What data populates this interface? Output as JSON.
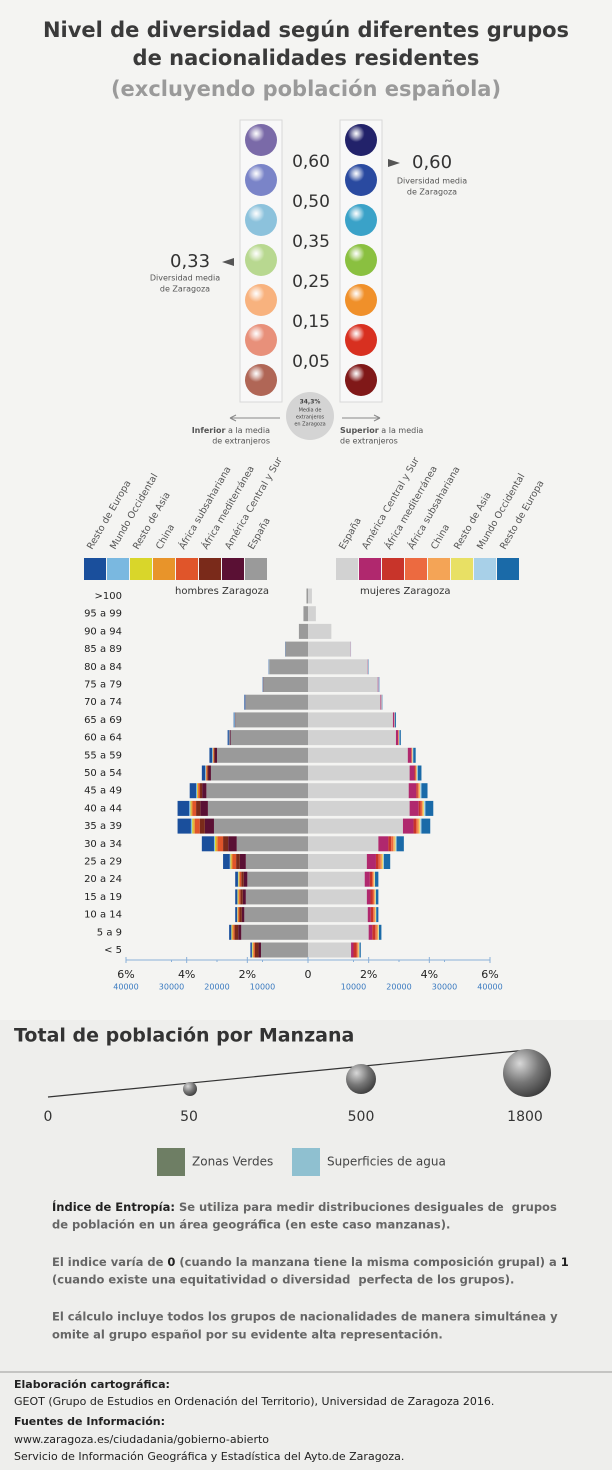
{
  "header": {
    "title_lines": [
      "Nivel de diversidad según diferentes grupos",
      "de nacionalidades residentes"
    ],
    "subtitle": "(excluyendo población española)"
  },
  "diversity": {
    "thresholds": [
      "0,60",
      "0,50",
      "0,35",
      "0,25",
      "0,15",
      "0,05"
    ],
    "left_colors": [
      "#7a6aa8",
      "#7a84c8",
      "#8cc2dc",
      "#b8d890",
      "#f8b27e",
      "#e8907a",
      "#b06656"
    ],
    "right_colors": [
      "#22226a",
      "#2a4aa0",
      "#3aa2c8",
      "#8ac040",
      "#f0902a",
      "#d83020",
      "#801818"
    ],
    "left_note": {
      "value": "0,33",
      "text": [
        "Diversidad media",
        "de Zaragoza"
      ]
    },
    "right_note": {
      "value": "0,60",
      "text": [
        "Diversidad media",
        "de Zaragoza"
      ]
    },
    "average": [
      "34,3%",
      "Media de",
      "extranjeros",
      "en Zaragoza"
    ],
    "inferior": {
      "bold": "Inferior",
      "text": " a la media",
      "line2": "de extranjeros"
    },
    "superior": {
      "bold": "Superior",
      "text": " a la media",
      "line2": "de extranjeros"
    }
  },
  "chart_data": {
    "type": "pyramid",
    "categories": [
      ">100",
      "95 a 99",
      "90 a 94",
      "85 a 89",
      "80 a 84",
      "75 a 79",
      "70 a 74",
      "65 a 69",
      "60 a 64",
      "55 a 59",
      "50 a 54",
      "45 a 49",
      "40 a 44",
      "35 a 39",
      "30 a 34",
      "25 a 29",
      "20 a 24",
      "15 a 19",
      "10 a 14",
      "5 a 9",
      "< 5"
    ],
    "xlim": [
      -6,
      6
    ],
    "xticks": [
      {
        "value": -6,
        "label": "6%"
      },
      {
        "value": -4,
        "label": "4%"
      },
      {
        "value": -2,
        "label": "2%"
      },
      0,
      {
        "value": 2,
        "label": "2%"
      },
      {
        "value": 4,
        "label": "4%"
      },
      {
        "value": 6,
        "label": "6%"
      }
    ],
    "x2ticks": [
      {
        "value": -6,
        "label": "40000"
      },
      {
        "value": -4.5,
        "label": "30000"
      },
      {
        "value": -3,
        "label": "20000"
      },
      {
        "value": -1.5,
        "label": "10000"
      },
      {
        "value": 1.5,
        "label": "10000"
      },
      {
        "value": 3,
        "label": "20000"
      },
      {
        "value": 4.5,
        "label": "30000"
      },
      {
        "value": 6,
        "label": "40000"
      }
    ],
    "groups": [
      {
        "name": "hombres Zaragoza",
        "series": [
          {
            "name": "España",
            "color": "#9a9a9a",
            "values": [
              -0.05,
              -0.15,
              -0.3,
              -0.74,
              -1.28,
              -1.47,
              -2.05,
              -2.4,
              -2.55,
              -3.0,
              -3.2,
              -3.35,
              -3.3,
              -3.1,
              -2.35,
              -2.05,
              -2.0,
              -2.05,
              -2.1,
              -2.2,
              -1.55
            ]
          },
          {
            "name": "América Central y Sur",
            "color": "#5a1034",
            "values": [
              0,
              0,
              0,
              0,
              0,
              -0.01,
              -0.01,
              -0.01,
              -0.03,
              -0.07,
              -0.08,
              -0.14,
              -0.25,
              -0.3,
              -0.28,
              -0.2,
              -0.12,
              -0.1,
              -0.08,
              -0.1,
              -0.08
            ]
          },
          {
            "name": "África mediterránea",
            "color": "#7a2a1a",
            "values": [
              0,
              0,
              0,
              0,
              0,
              0,
              0,
              0,
              -0.01,
              -0.03,
              -0.04,
              -0.07,
              -0.14,
              -0.17,
              -0.17,
              -0.12,
              -0.08,
              -0.08,
              -0.08,
              -0.12,
              -0.12
            ]
          },
          {
            "name": "África subsahariana",
            "color": "#e0552a",
            "values": [
              0,
              0,
              0,
              0,
              0,
              0,
              0,
              0,
              0,
              -0.02,
              -0.03,
              -0.06,
              -0.12,
              -0.16,
              -0.18,
              -0.12,
              -0.05,
              -0.04,
              -0.03,
              -0.04,
              -0.04
            ]
          },
          {
            "name": "China",
            "color": "#e8942a",
            "values": [
              0,
              0,
              0,
              0,
              0,
              0,
              0,
              0,
              0,
              -0.01,
              -0.01,
              -0.02,
              -0.04,
              -0.05,
              -0.05,
              -0.04,
              -0.03,
              -0.03,
              -0.03,
              -0.04,
              -0.03
            ]
          },
          {
            "name": "Resto de Asia",
            "color": "#d9d62a",
            "values": [
              0,
              0,
              0,
              0,
              0,
              0,
              0,
              0,
              0,
              -0.01,
              -0.01,
              -0.02,
              -0.03,
              -0.04,
              -0.04,
              -0.03,
              -0.02,
              -0.02,
              -0.01,
              -0.02,
              -0.02
            ]
          },
          {
            "name": "Mundo Occidental",
            "color": "#7ab8e0",
            "values": [
              0,
              0,
              0,
              0,
              -0.01,
              -0.01,
              -0.02,
              -0.02,
              -0.02,
              -0.02,
              -0.02,
              -0.03,
              -0.04,
              -0.04,
              -0.03,
              -0.02,
              -0.01,
              -0.01,
              -0.01,
              -0.01,
              -0.01
            ]
          },
          {
            "name": "Resto de Europa",
            "color": "#1a4f9c",
            "values": [
              0,
              0,
              0,
              -0.01,
              -0.01,
              -0.01,
              -0.02,
              -0.02,
              -0.04,
              -0.09,
              -0.11,
              -0.21,
              -0.38,
              -0.44,
              -0.4,
              -0.22,
              -0.09,
              -0.07,
              -0.06,
              -0.07,
              -0.05
            ]
          }
        ]
      },
      {
        "name": "mujeres Zaragoza",
        "series": [
          {
            "name": "España",
            "color": "#d2d2d2",
            "values": [
              0.13,
              0.26,
              0.77,
              1.4,
              1.97,
              2.3,
              2.39,
              2.8,
              2.9,
              3.29,
              3.35,
              3.32,
              3.35,
              3.13,
              2.32,
              1.94,
              1.87,
              1.94,
              1.97,
              2.0,
              1.42
            ]
          },
          {
            "name": "América Central y Sur",
            "color": "#b0286e",
            "values": [
              0,
              0,
              0,
              0.01,
              0.01,
              0.02,
              0.02,
              0.04,
              0.07,
              0.11,
              0.16,
              0.25,
              0.3,
              0.35,
              0.33,
              0.3,
              0.17,
              0.12,
              0.1,
              0.12,
              0.08
            ]
          },
          {
            "name": "África mediterránea",
            "color": "#c8342a",
            "values": [
              0,
              0,
              0,
              0,
              0,
              0,
              0.01,
              0.01,
              0.01,
              0.02,
              0.03,
              0.05,
              0.06,
              0.08,
              0.09,
              0.09,
              0.07,
              0.08,
              0.08,
              0.1,
              0.1
            ]
          },
          {
            "name": "África subsahariana",
            "color": "#ec6a40",
            "values": [
              0,
              0,
              0,
              0,
              0,
              0,
              0,
              0,
              0.01,
              0.01,
              0.02,
              0.03,
              0.05,
              0.06,
              0.07,
              0.07,
              0.04,
              0.04,
              0.04,
              0.05,
              0.04
            ]
          },
          {
            "name": "China",
            "color": "#f4a456",
            "values": [
              0,
              0,
              0,
              0,
              0,
              0,
              0,
              0,
              0.01,
              0.01,
              0.02,
              0.03,
              0.04,
              0.05,
              0.05,
              0.05,
              0.03,
              0.03,
              0.03,
              0.04,
              0.03
            ]
          },
          {
            "name": "Resto de Asia",
            "color": "#e8e064",
            "values": [
              0,
              0,
              0,
              0,
              0,
              0,
              0,
              0,
              0,
              0.01,
              0.01,
              0.02,
              0.03,
              0.03,
              0.03,
              0.03,
              0.02,
              0.02,
              0.02,
              0.02,
              0.02
            ]
          },
          {
            "name": "Mundo Occidental",
            "color": "#a8d0e8",
            "values": [
              0,
              0,
              0,
              0.01,
              0.01,
              0.02,
              0.02,
              0.02,
              0.02,
              0.02,
              0.03,
              0.04,
              0.04,
              0.04,
              0.03,
              0.02,
              0.01,
              0.01,
              0.01,
              0.01,
              0.01
            ]
          },
          {
            "name": "Resto de Europa",
            "color": "#1a6aa8",
            "values": [
              0,
              0,
              0,
              0,
              0.01,
              0.01,
              0.01,
              0.03,
              0.04,
              0.08,
              0.12,
              0.2,
              0.26,
              0.29,
              0.24,
              0.21,
              0.11,
              0.08,
              0.07,
              0.08,
              0.04
            ]
          }
        ]
      }
    ]
  },
  "population_legend": {
    "title": "Total de población por Manzana",
    "values": [
      0,
      50,
      500,
      1800
    ]
  },
  "land_legend": [
    "Zonas Verdes",
    "Superficies de agua"
  ],
  "notes": {
    "p1": [
      "Índice de Entropía:",
      " Se utiliza para medir distribuciones desiguales de  grupos",
      "de población en un área geográfica (en este caso manzanas)."
    ],
    "p2": [
      "El indice varía de ",
      "0",
      " (cuando la manzana tiene la misma composición grupal) a ",
      "1",
      "(cuando existe una equitatividad o diversidad  perfecta de los grupos)."
    ],
    "p3": [
      "El cálculo incluye todos los grupos de nacionalidades de manera simultánea y",
      "omite al grupo español por su evidente alta representación."
    ]
  },
  "credits": {
    "elaboracion_title": "Elaboración cartográfica:",
    "elaboracion": "GEOT (Grupo de Estudios en Ordenación del Territorio), Universidad de Zaragoza 2016.",
    "fuentes_title": "Fuentes de Información:",
    "fuentes": [
      "www.zaragoza.es/ciudadania/gobierno-abierto",
      "Servicio de Información Geográfica y Estadística del Ayto.de Zaragoza."
    ]
  }
}
